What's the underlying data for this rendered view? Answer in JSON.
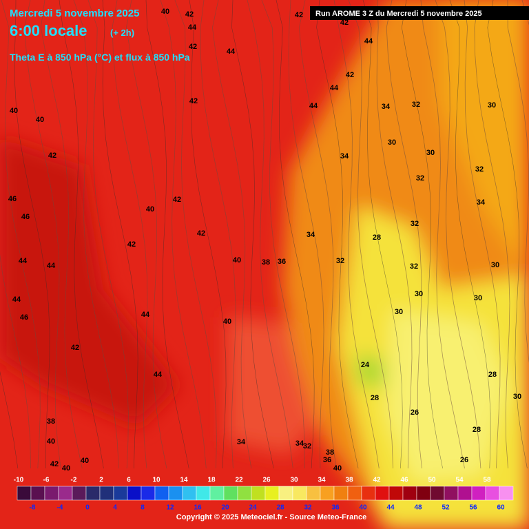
{
  "header": {
    "date": "Mercredi 5 novembre 2025",
    "time": "6:00 locale",
    "offset": "(+ 2h)",
    "field": "Theta E à 850 hPa (°C) et flux à 850 hPa",
    "run": "Run AROME 3 Z du Mercredi 5 novembre 2025"
  },
  "colorbar": {
    "labels": [
      -10,
      -8,
      -6,
      -4,
      -2,
      0,
      2,
      4,
      6,
      8,
      10,
      12,
      14,
      16,
      18,
      20,
      22,
      24,
      26,
      28,
      30,
      32,
      34,
      36,
      38,
      40,
      42,
      44,
      46,
      48,
      50,
      52,
      54,
      56,
      58,
      60
    ],
    "colors": [
      "#3a0a3a",
      "#5a1050",
      "#7a1a6e",
      "#9a2a8c",
      "#5a1a5a",
      "#2a2a6a",
      "#20307a",
      "#1a3a9a",
      "#0a10c8",
      "#1a2ae8",
      "#1060f0",
      "#1a90f0",
      "#30c0f0",
      "#40e8e8",
      "#60f0a0",
      "#60e060",
      "#90e040",
      "#c0e020",
      "#e8f020",
      "#f8f080",
      "#f8e860",
      "#f8c040",
      "#f8a020",
      "#f08010",
      "#f06010",
      "#e83010",
      "#e01010",
      "#c00808",
      "#a00010",
      "#800010",
      "#700a30",
      "#901060",
      "#b01090",
      "#d020c0",
      "#e850e0",
      "#f890f0"
    ]
  },
  "contour_labels": [
    "40",
    "42",
    "42",
    "42",
    "44",
    "42",
    "44",
    "44",
    "42",
    "44",
    "44",
    "42",
    "40",
    "40",
    "34",
    "32",
    "30",
    "30",
    "30",
    "34",
    "42",
    "32",
    "32",
    "46",
    "42",
    "40",
    "46",
    "34",
    "32",
    "42",
    "34",
    "28",
    "42",
    "40",
    "38",
    "36",
    "32",
    "32",
    "30",
    "44",
    "44",
    "30",
    "30",
    "44",
    "30",
    "46",
    "44",
    "40",
    "42",
    "24",
    "44",
    "28",
    "28",
    "30",
    "26",
    "38",
    "28",
    "34",
    "34",
    "32",
    "38",
    "36",
    "40",
    "26",
    "42",
    "40",
    "40",
    "40"
  ],
  "copyright": "Copyright © 2025 Meteociel.fr - Source Meteo-France"
}
